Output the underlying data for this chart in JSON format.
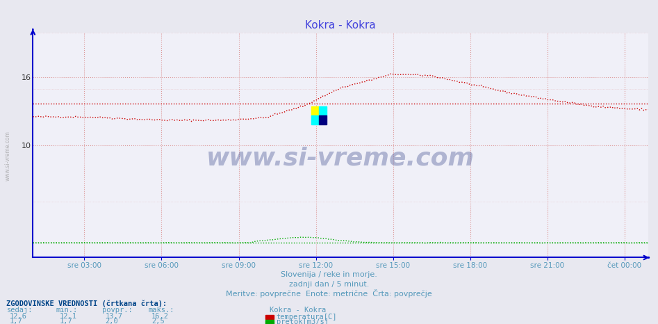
{
  "title": "Kokra - Kokra",
  "title_color": "#4444dd",
  "bg_color": "#e8e8f0",
  "plot_bg_color": "#f0f0f8",
  "grid_color": "#dd9999",
  "xlim": [
    0,
    287
  ],
  "ylim": [
    0,
    20
  ],
  "yticks": [
    10,
    16
  ],
  "ytick_labels": [
    "10",
    "16"
  ],
  "x_tick_positions": [
    24,
    60,
    96,
    132,
    168,
    204,
    240,
    276
  ],
  "x_tick_labels": [
    "sre 03:00",
    "sre 06:00",
    "sre 09:00",
    "sre 12:00",
    "sre 15:00",
    "sre 18:00",
    "sre 21:00",
    "čet 00:00"
  ],
  "temp_color": "#cc0000",
  "flow_color": "#00aa00",
  "temp_avg": 13.7,
  "flow_avg_scaled": 1.7,
  "subtitle1": "Slovenija / reke in morje.",
  "subtitle2": "zadnji dan / 5 minut.",
  "subtitle3": "Meritve: povprečne  Enote: metrične  Črta: povprečje",
  "footer_color": "#5599bb",
  "table_header": "ZGODOVINSKE VREDNOSTI (črtkana črta):",
  "table_cols": [
    "sedaj:",
    "min.:",
    "povpr.:",
    "maks.:"
  ],
  "table_temp": [
    "12,6",
    "12,1",
    "13,7",
    "16,2"
  ],
  "table_flow": [
    "1,7",
    "1,7",
    "2,0",
    "2,5"
  ],
  "legend_title": "Kokra - Kokra",
  "legend_temp": "temperatura[C]",
  "legend_flow": "pretok[m3/s]",
  "watermark_text": "www.si-vreme.com",
  "watermark_color": "#1a2a7a",
  "watermark_alpha": 0.3,
  "sidebar_text": "www.si-vreme.com"
}
